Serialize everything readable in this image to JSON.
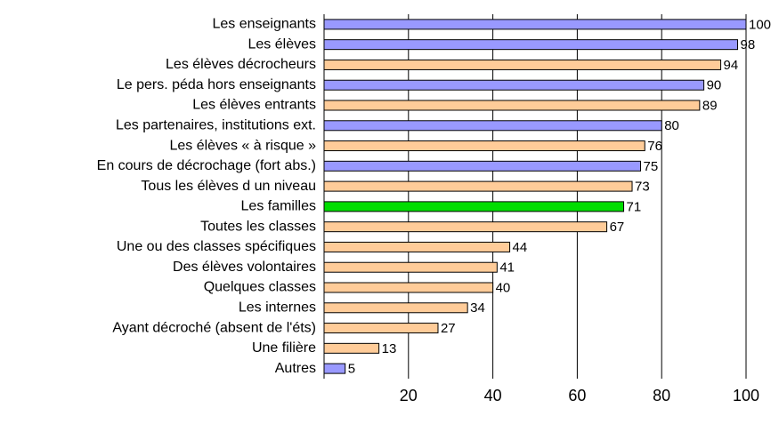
{
  "chart_data": {
    "type": "barh",
    "categories": [
      "Les enseignants",
      "Les élèves",
      "Les élèves décrocheurs",
      "Le pers. péda hors enseignants",
      "Les élèves entrants",
      "Les partenaires, institutions ext.",
      "Les élèves « à risque »",
      "En cours de décrochage (fort abs.)",
      "Tous les élèves d un niveau",
      "Les familles",
      "Toutes les classes",
      "Une ou des classes spécifiques",
      "Des élèves volontaires",
      "Quelques classes",
      "Les internes",
      "Ayant décroché (absent de l'éts)",
      "Une filière",
      "Autres"
    ],
    "values": [
      100,
      98,
      94,
      90,
      89,
      80,
      76,
      75,
      73,
      71,
      67,
      44,
      41,
      40,
      34,
      27,
      13,
      5
    ],
    "colors": [
      "#9999ff",
      "#9999ff",
      "#ffcc99",
      "#9999ff",
      "#ffcc99",
      "#9999ff",
      "#ffcc99",
      "#9999ff",
      "#ffcc99",
      "#00dd00",
      "#ffcc99",
      "#ffcc99",
      "#ffcc99",
      "#ffcc99",
      "#ffcc99",
      "#ffcc99",
      "#ffcc99",
      "#9999ff"
    ],
    "xlim": [
      0,
      100
    ],
    "xticks": [
      20,
      40,
      60,
      80,
      100
    ],
    "grid": true
  }
}
